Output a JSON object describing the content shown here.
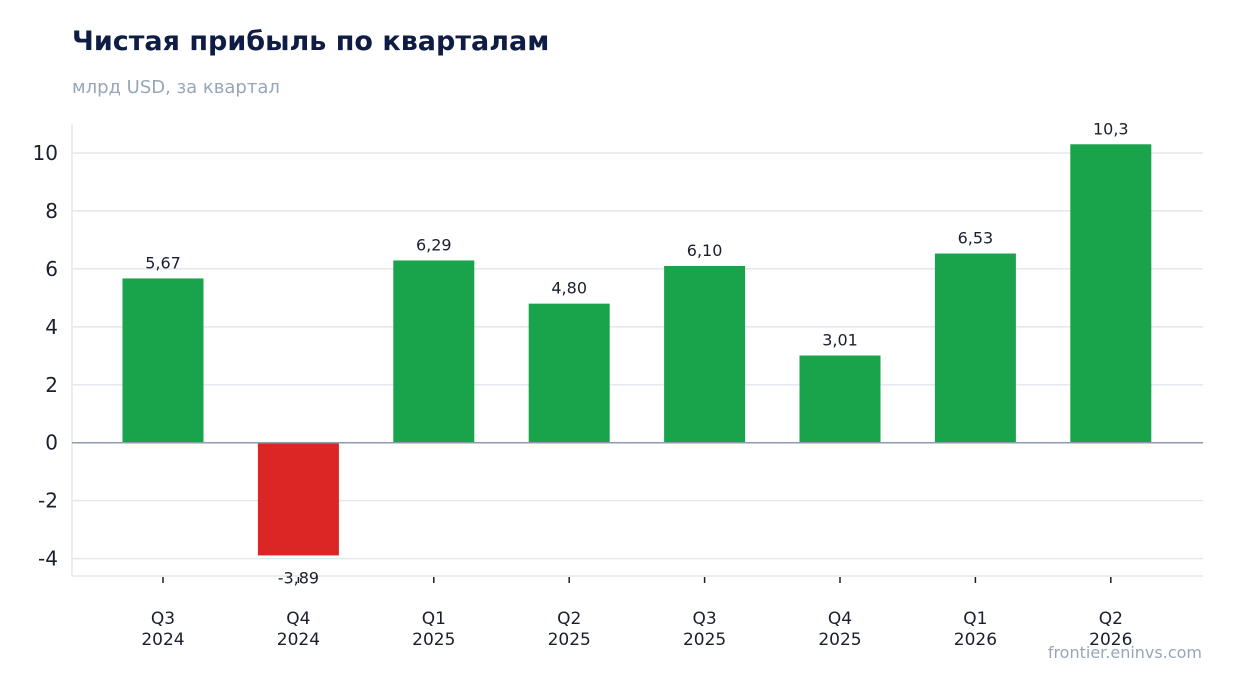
{
  "header": {
    "title": "Чистая прибыль по кварталам",
    "subtitle": "млрд USD, за квартал"
  },
  "footer": {
    "source": "frontier.eninvs.com"
  },
  "colors": {
    "positive": "#19a34a",
    "negative": "#dc2626",
    "grid": "#e3e7ee",
    "zero_line": "#8c9bad"
  },
  "chart_data": {
    "type": "bar",
    "title": "Чистая прибыль по кварталам",
    "subtitle": "млрд USD, за квартал",
    "categories": [
      [
        "Q3",
        "2024"
      ],
      [
        "Q4",
        "2024"
      ],
      [
        "Q1",
        "2025"
      ],
      [
        "Q2",
        "2025"
      ],
      [
        "Q3",
        "2025"
      ],
      [
        "Q4",
        "2025"
      ],
      [
        "Q1",
        "2026"
      ],
      [
        "Q2",
        "2026"
      ]
    ],
    "values": [
      5.67,
      -3.89,
      6.29,
      4.8,
      6.1,
      3.01,
      6.53,
      10.3
    ],
    "value_labels": [
      "5,67",
      "-3,89",
      "6,29",
      "4,80",
      "6,10",
      "3,01",
      "6,53",
      "10,3"
    ],
    "yticks": [
      -4,
      -2,
      0,
      2,
      4,
      6,
      8,
      10
    ],
    "ylim": [
      -4.6,
      11.0
    ],
    "grid": true
  }
}
